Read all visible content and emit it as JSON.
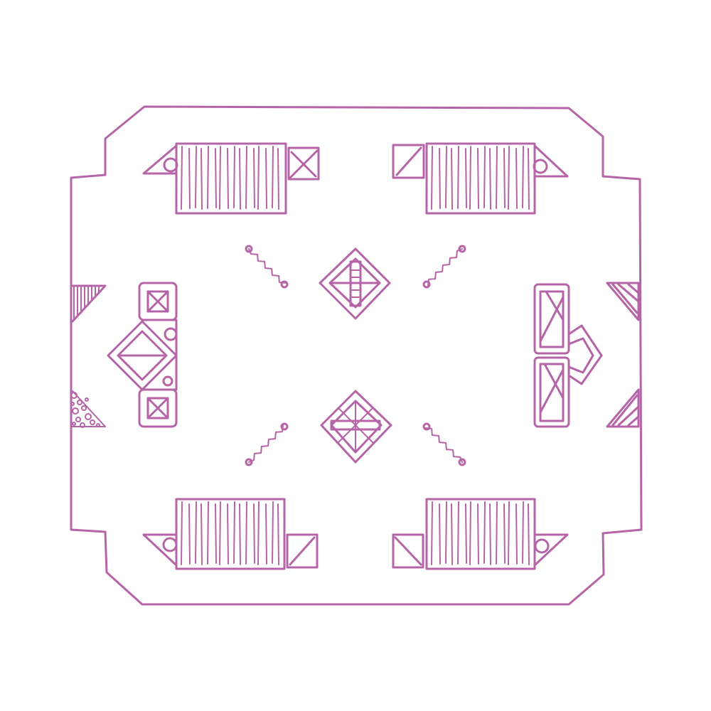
{
  "map": {
    "ink_color": "#b565a7",
    "background": "#ffffff",
    "style": "hand-drawn dungeon room, top-down floor plan",
    "features": [
      {
        "kind": "room-outline",
        "shape": "octagon with notched corners"
      },
      {
        "kind": "bench",
        "count": 4,
        "icon": "slatted-bench-icon"
      },
      {
        "kind": "crate",
        "icon": "crate-icon"
      },
      {
        "kind": "diamond-marker",
        "count": 2,
        "icon": "diamond-rune-icon"
      },
      {
        "kind": "chain",
        "count": 4,
        "icon": "chain-icon"
      },
      {
        "kind": "door",
        "count": 2,
        "icon": "double-door-icon"
      },
      {
        "kind": "rubble",
        "icon": "rubble-icon"
      },
      {
        "kind": "stair-wedge",
        "icon": "stair-icon"
      }
    ]
  }
}
